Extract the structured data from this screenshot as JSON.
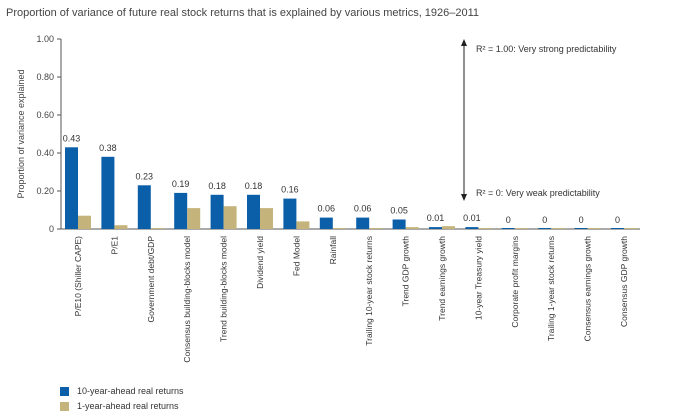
{
  "chart_data": {
    "type": "bar",
    "title": "Proportion of variance of future real stock returns that is explained by various metrics, 1926–2011",
    "ylabel": "Proportion of variance explained",
    "ylim": [
      0,
      1.0
    ],
    "yticks": [
      "0",
      "0.20",
      "0.40",
      "0.60",
      "0.80",
      "1.00"
    ],
    "categories": [
      "P/E10 (Shiller CAPE)",
      "P/E1",
      "Government debt/GDP",
      "Consensus building-blocks model",
      "Trend building-blocks model",
      "Dividend yield",
      "Fed Model",
      "Rainfall",
      "Trailing 10-year stock returns",
      "Trend GDP growth",
      "Trend earnings growth",
      "10-year Treasury yield",
      "Corporate profit margins",
      "Trailing 1-year stock returns",
      "Consensus earnings growth",
      "Consensus GDP growth"
    ],
    "labels": [
      "0.43",
      "0.38",
      "0.23",
      "0.19",
      "0.18",
      "0.18",
      "0.16",
      "0.06",
      "0.06",
      "0.05",
      "0.01",
      "0.01",
      "0",
      "0",
      "0",
      "0"
    ],
    "series": [
      {
        "name": "10-year-ahead real returns",
        "color": "#0b5ea8",
        "values": [
          0.43,
          0.38,
          0.23,
          0.19,
          0.18,
          0.18,
          0.16,
          0.06,
          0.06,
          0.05,
          0.01,
          0.01,
          0,
          0,
          0,
          0
        ]
      },
      {
        "name": "1-year-ahead real returns",
        "color": "#c4b47c",
        "values": [
          0.07,
          0.02,
          0.0,
          0.11,
          0.12,
          0.11,
          0.04,
          0.0,
          0.0,
          0.01,
          0.015,
          0.0,
          0.0,
          0.0,
          0.0,
          0.0
        ]
      }
    ],
    "annotations": {
      "top": "R² = 1.00: Very strong predictability",
      "bottom": "R² = 0: Very weak predictability"
    }
  }
}
